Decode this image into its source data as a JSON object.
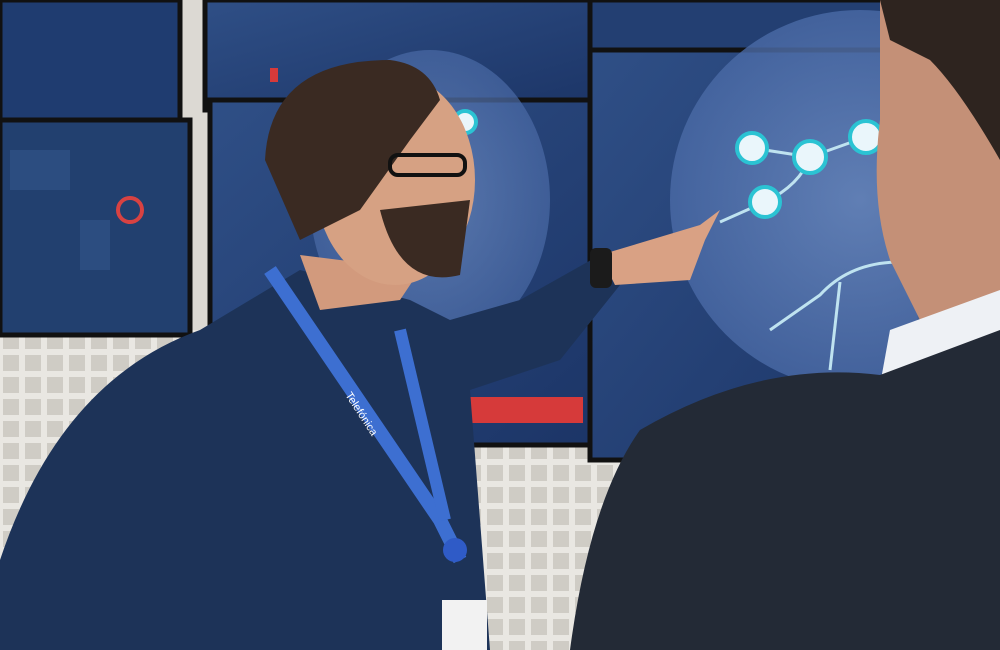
{
  "lanyard": {
    "text": "Telefónica"
  }
}
